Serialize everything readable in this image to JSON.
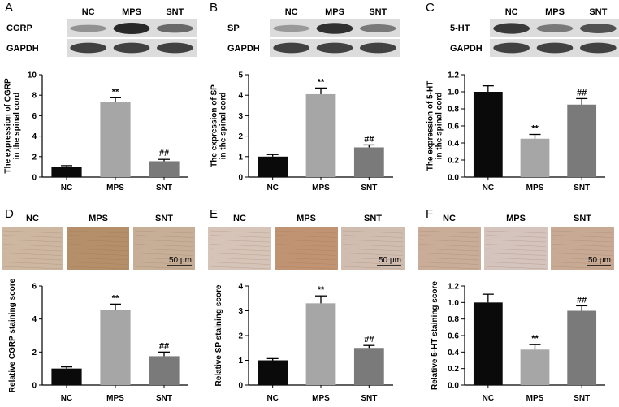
{
  "panels": [
    {
      "letter": "A",
      "blot": {
        "groups": [
          "NC",
          "MPS",
          "SNT"
        ],
        "rows": [
          {
            "label": "CGRP",
            "levels": [
              0.35,
              1.0,
              0.6
            ]
          },
          {
            "label": "GAPDH",
            "levels": [
              0.85,
              0.85,
              0.85
            ]
          }
        ]
      },
      "chart": {
        "ylabel_lines": [
          "The expression of CGRP",
          "in the spinal cord"
        ],
        "ylim": [
          0,
          10
        ],
        "ticks": [
          "0",
          "2",
          "4",
          "6",
          "8",
          "10"
        ],
        "categories": [
          "NC",
          "MPS",
          "SNT"
        ],
        "values": [
          1.0,
          7.3,
          1.55
        ],
        "errors": [
          0.12,
          0.45,
          0.18
        ],
        "annotations": [
          "",
          "**",
          "##"
        ],
        "colors": [
          "#0a0a0a",
          "#a6a6a6",
          "#7a7a7a"
        ]
      }
    },
    {
      "letter": "B",
      "blot": {
        "groups": [
          "NC",
          "MPS",
          "SNT"
        ],
        "rows": [
          {
            "label": "SP",
            "levels": [
              0.3,
              0.95,
              0.5
            ]
          },
          {
            "label": "GAPDH",
            "levels": [
              0.85,
              0.85,
              0.85
            ]
          }
        ]
      },
      "chart": {
        "ylabel_lines": [
          "The expression of SP",
          "in the spinal cord"
        ],
        "ylim": [
          0,
          5
        ],
        "ticks": [
          "0",
          "1",
          "2",
          "3",
          "4",
          "5"
        ],
        "categories": [
          "NC",
          "MPS",
          "SNT"
        ],
        "values": [
          1.0,
          4.05,
          1.45
        ],
        "errors": [
          0.1,
          0.3,
          0.12
        ],
        "annotations": [
          "",
          "**",
          "##"
        ],
        "colors": [
          "#0a0a0a",
          "#a6a6a6",
          "#7a7a7a"
        ]
      }
    },
    {
      "letter": "C",
      "blot": {
        "groups": [
          "NC",
          "MPS",
          "SNT"
        ],
        "rows": [
          {
            "label": "5-HT",
            "levels": [
              0.9,
              0.5,
              0.75
            ]
          },
          {
            "label": "GAPDH",
            "levels": [
              0.85,
              0.85,
              0.85
            ]
          }
        ]
      },
      "chart": {
        "ylabel_lines": [
          "The expression of 5-HT",
          "in the spinal cord"
        ],
        "ylim": [
          0,
          1.2
        ],
        "ticks": [
          "0.0",
          "0.2",
          "0.4",
          "0.6",
          "0.8",
          "1.0",
          "1.2"
        ],
        "categories": [
          "NC",
          "MPS",
          "SNT"
        ],
        "values": [
          1.0,
          0.45,
          0.85
        ],
        "errors": [
          0.07,
          0.05,
          0.07
        ],
        "annotations": [
          "",
          "**",
          "##"
        ],
        "colors": [
          "#0a0a0a",
          "#a6a6a6",
          "#7a7a7a"
        ]
      }
    },
    {
      "letter": "D",
      "stain": {
        "groups": [
          "NC",
          "MPS",
          "SNT"
        ],
        "scalebar": "50 μm",
        "colors": [
          "#cdb7a0",
          "#b58e6a",
          "#c7ae97"
        ]
      },
      "chart": {
        "ylabel_lines": [
          "Relative CGRP staining score"
        ],
        "ylim": [
          0,
          6
        ],
        "ticks": [
          "0",
          "2",
          "4",
          "6"
        ],
        "categories": [
          "NC",
          "MPS",
          "SNT"
        ],
        "values": [
          1.0,
          4.55,
          1.75
        ],
        "errors": [
          0.1,
          0.35,
          0.25
        ],
        "annotations": [
          "",
          "**",
          "##"
        ],
        "colors": [
          "#0a0a0a",
          "#a6a6a6",
          "#7a7a7a"
        ]
      }
    },
    {
      "letter": "E",
      "stain": {
        "groups": [
          "NC",
          "MPS",
          "SNT"
        ],
        "scalebar": "50 μm",
        "colors": [
          "#d6c4b8",
          "#c09472",
          "#d1bdb0"
        ]
      },
      "chart": {
        "ylabel_lines": [
          "Relative SP staining score"
        ],
        "ylim": [
          0,
          4
        ],
        "ticks": [
          "0",
          "1",
          "2",
          "3",
          "4"
        ],
        "categories": [
          "NC",
          "MPS",
          "SNT"
        ],
        "values": [
          1.0,
          3.3,
          1.5
        ],
        "errors": [
          0.07,
          0.3,
          0.1
        ],
        "annotations": [
          "",
          "**",
          "##"
        ],
        "colors": [
          "#0a0a0a",
          "#a6a6a6",
          "#7a7a7a"
        ]
      }
    },
    {
      "letter": "F",
      "stain": {
        "groups": [
          "NC",
          "MPS",
          "SNT"
        ],
        "scalebar": "50 μm",
        "colors": [
          "#c9ad98",
          "#d5c3bd",
          "#c8a993"
        ]
      },
      "chart": {
        "ylabel_lines": [
          "Relative 5-HT staining score"
        ],
        "ylim": [
          0,
          1.2
        ],
        "ticks": [
          "0.0",
          "0.2",
          "0.4",
          "0.6",
          "0.8",
          "1.0",
          "1.2"
        ],
        "categories": [
          "NC",
          "MPS",
          "SNT"
        ],
        "values": [
          1.0,
          0.43,
          0.9
        ],
        "errors": [
          0.1,
          0.06,
          0.06
        ],
        "annotations": [
          "",
          "**",
          "##"
        ],
        "colors": [
          "#0a0a0a",
          "#a6a6a6",
          "#7a7a7a"
        ]
      }
    }
  ],
  "chart_data": [
    {
      "type": "bar",
      "title": "",
      "xlabel": "",
      "ylabel": "The expression of CGRP in the spinal cord",
      "categories": [
        "NC",
        "MPS",
        "SNT"
      ],
      "values": [
        1.0,
        7.3,
        1.55
      ],
      "errors": [
        0.12,
        0.45,
        0.18
      ],
      "annotations": [
        "",
        "**",
        "##"
      ],
      "ylim": [
        0,
        10
      ]
    },
    {
      "type": "bar",
      "title": "",
      "xlabel": "",
      "ylabel": "The expression of SP in the spinal cord",
      "categories": [
        "NC",
        "MPS",
        "SNT"
      ],
      "values": [
        1.0,
        4.05,
        1.45
      ],
      "errors": [
        0.1,
        0.3,
        0.12
      ],
      "annotations": [
        "",
        "**",
        "##"
      ],
      "ylim": [
        0,
        5
      ]
    },
    {
      "type": "bar",
      "title": "",
      "xlabel": "",
      "ylabel": "The expression of 5-HT in the spinal cord",
      "categories": [
        "NC",
        "MPS",
        "SNT"
      ],
      "values": [
        1.0,
        0.45,
        0.85
      ],
      "errors": [
        0.07,
        0.05,
        0.07
      ],
      "annotations": [
        "",
        "**",
        "##"
      ],
      "ylim": [
        0,
        1.2
      ]
    },
    {
      "type": "bar",
      "title": "",
      "xlabel": "",
      "ylabel": "Relative CGRP staining score",
      "categories": [
        "NC",
        "MPS",
        "SNT"
      ],
      "values": [
        1.0,
        4.55,
        1.75
      ],
      "errors": [
        0.1,
        0.35,
        0.25
      ],
      "annotations": [
        "",
        "**",
        "##"
      ],
      "ylim": [
        0,
        6
      ]
    },
    {
      "type": "bar",
      "title": "",
      "xlabel": "",
      "ylabel": "Relative SP staining score",
      "categories": [
        "NC",
        "MPS",
        "SNT"
      ],
      "values": [
        1.0,
        3.3,
        1.5
      ],
      "errors": [
        0.07,
        0.3,
        0.1
      ],
      "annotations": [
        "",
        "**",
        "##"
      ],
      "ylim": [
        0,
        4
      ]
    },
    {
      "type": "bar",
      "title": "",
      "xlabel": "",
      "ylabel": "Relative 5-HT staining score",
      "categories": [
        "NC",
        "MPS",
        "SNT"
      ],
      "values": [
        1.0,
        0.43,
        0.9
      ],
      "errors": [
        0.1,
        0.06,
        0.06
      ],
      "annotations": [
        "",
        "**",
        "##"
      ],
      "ylim": [
        0,
        1.2
      ]
    }
  ]
}
